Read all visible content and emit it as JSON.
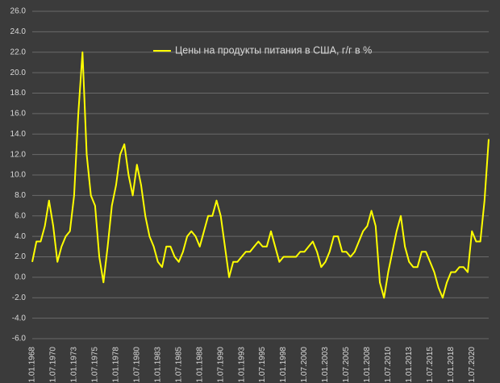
{
  "chart_data": {
    "type": "line",
    "categories": [
      "31.01.1968",
      null,
      null,
      null,
      null,
      "31.07.1970",
      null,
      null,
      null,
      null,
      "31.01.1973",
      null,
      null,
      null,
      null,
      "31.07.1975",
      null,
      null,
      null,
      null,
      "31.01.1978",
      null,
      null,
      null,
      null,
      "31.07.1980",
      null,
      null,
      null,
      null,
      "31.01.1983",
      null,
      null,
      null,
      null,
      "31.07.1985",
      null,
      null,
      null,
      null,
      "31.01.1988",
      null,
      null,
      null,
      null,
      "31.07.1990",
      null,
      null,
      null,
      null,
      "31.01.1993",
      null,
      null,
      null,
      null,
      "31.07.1995",
      null,
      null,
      null,
      null,
      "31.01.1998",
      null,
      null,
      null,
      null,
      "31.07.2000",
      null,
      null,
      null,
      null,
      "31.01.2003",
      null,
      null,
      null,
      null,
      "31.07.2005",
      null,
      null,
      null,
      null,
      "31.01.2008",
      null,
      null,
      null,
      null,
      "31.07.2010",
      null,
      null,
      null,
      null,
      "31.01.2013",
      null,
      null,
      null,
      null,
      "31.07.2015",
      null,
      null,
      null,
      null,
      "31.01.2018",
      null,
      null,
      null,
      null,
      "31.07.2020",
      null,
      null,
      null,
      null
    ],
    "series": [
      {
        "name": "Цены на продукты питания в США, г/г в %",
        "color": "#ffff00",
        "values": [
          1.5,
          3.5,
          3.5,
          5,
          7.5,
          5,
          1.5,
          3,
          4,
          4.5,
          8,
          16,
          22,
          12,
          8,
          7,
          2,
          -0.5,
          3,
          7,
          9,
          12,
          13,
          10,
          8,
          11,
          9,
          6,
          4,
          3,
          1.5,
          1,
          3,
          3,
          2,
          1.5,
          2.5,
          4,
          4.5,
          4,
          3,
          4.5,
          6,
          6,
          7.5,
          6,
          3,
          0,
          1.5,
          1.5,
          2,
          2.5,
          2.5,
          3,
          3.5,
          3,
          3,
          4.5,
          3,
          1.5,
          2,
          2,
          2,
          2,
          2.5,
          2.5,
          3,
          3.5,
          2.5,
          1,
          1.5,
          2.5,
          4,
          4,
          2.5,
          2.5,
          2,
          2.5,
          3.5,
          4.5,
          5,
          6.5,
          5,
          -0.5,
          -2,
          0.5,
          2.5,
          4.5,
          6,
          3,
          1.5,
          1,
          1,
          2.5,
          2.5,
          1.5,
          0.5,
          -1,
          -2,
          -0.5,
          0.5,
          0.5,
          1,
          1,
          0.5,
          4.5,
          3.5,
          3.5,
          7.5,
          13.5
        ]
      }
    ],
    "ylim": [
      -6,
      26
    ],
    "yticks": [
      {
        "value": -6,
        "label": "-6.0"
      },
      {
        "value": -4,
        "label": "-4.0"
      },
      {
        "value": -2,
        "label": "-2.0"
      },
      {
        "value": 0,
        "label": "0.0"
      },
      {
        "value": 2,
        "label": "2.0"
      },
      {
        "value": 4,
        "label": "4.0"
      },
      {
        "value": 6,
        "label": "6.0"
      },
      {
        "value": 8,
        "label": "8.0"
      },
      {
        "value": 10,
        "label": "10.0"
      },
      {
        "value": 12,
        "label": "12.0"
      },
      {
        "value": 14,
        "label": "14.0"
      },
      {
        "value": 16,
        "label": "16.0"
      },
      {
        "value": 18,
        "label": "18.0"
      },
      {
        "value": 20,
        "label": "20.0"
      },
      {
        "value": 22,
        "label": "22.0"
      },
      {
        "value": 24,
        "label": "24.0"
      },
      {
        "value": 26,
        "label": "26.0"
      }
    ],
    "grid": true
  }
}
